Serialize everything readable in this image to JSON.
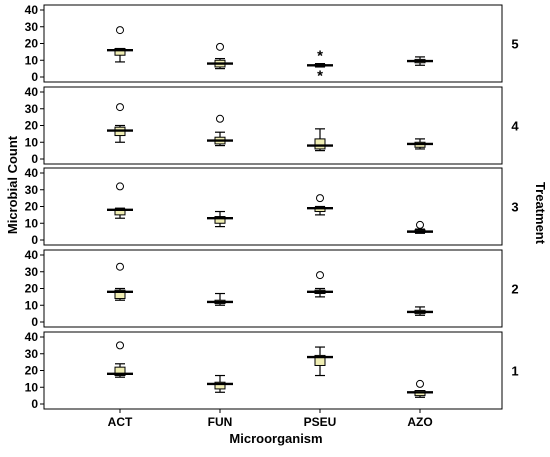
{
  "chart_data": {
    "type": "boxplot",
    "xlabel": "Microorganism",
    "ylabel": "Microbial Count",
    "facet_label": "Treatment",
    "categories": [
      "ACT",
      "FUN",
      "PSEU",
      "AZO"
    ],
    "ylim": [
      0,
      40
    ],
    "yticks": [
      0,
      10,
      20,
      30,
      40
    ],
    "grid": false,
    "box_fill": "#f0eeb4",
    "panels": [
      {
        "treatment": "5",
        "boxes": [
          {
            "category": "ACT",
            "min": 9,
            "q1": 13,
            "median": 16,
            "q3": 17,
            "max": 17,
            "outliers": [
              {
                "value": 28,
                "marker": "circle"
              }
            ]
          },
          {
            "category": "FUN",
            "min": 5,
            "q1": 6,
            "median": 8,
            "q3": 10,
            "max": 11,
            "outliers": [
              {
                "value": 18,
                "marker": "circle"
              }
            ]
          },
          {
            "category": "PSEU",
            "min": 6,
            "q1": 6.5,
            "median": 7,
            "q3": 7.5,
            "max": 8,
            "outliers": [
              {
                "value": 14,
                "marker": "star"
              },
              {
                "value": 2,
                "marker": "star"
              }
            ]
          },
          {
            "category": "AZO",
            "min": 7,
            "q1": 8.5,
            "median": 9.5,
            "q3": 10.5,
            "max": 12,
            "outliers": []
          }
        ]
      },
      {
        "treatment": "4",
        "boxes": [
          {
            "category": "ACT",
            "min": 10,
            "q1": 14,
            "median": 17,
            "q3": 19,
            "max": 20,
            "outliers": [
              {
                "value": 31,
                "marker": "circle"
              }
            ]
          },
          {
            "category": "FUN",
            "min": 8,
            "q1": 9,
            "median": 11,
            "q3": 13,
            "max": 16,
            "outliers": [
              {
                "value": 24,
                "marker": "circle"
              }
            ]
          },
          {
            "category": "PSEU",
            "min": 5,
            "q1": 6,
            "median": 8,
            "q3": 12,
            "max": 18,
            "outliers": []
          },
          {
            "category": "AZO",
            "min": 6,
            "q1": 7,
            "median": 9,
            "q3": 10,
            "max": 12,
            "outliers": []
          }
        ]
      },
      {
        "treatment": "3",
        "boxes": [
          {
            "category": "ACT",
            "min": 13,
            "q1": 15,
            "median": 18,
            "q3": 18.5,
            "max": 19,
            "outliers": [
              {
                "value": 32,
                "marker": "circle"
              }
            ]
          },
          {
            "category": "FUN",
            "min": 8,
            "q1": 10,
            "median": 13,
            "q3": 14,
            "max": 17,
            "outliers": []
          },
          {
            "category": "PSEU",
            "min": 15,
            "q1": 17,
            "median": 19,
            "q3": 19.5,
            "max": 20,
            "outliers": [
              {
                "value": 25,
                "marker": "circle"
              }
            ]
          },
          {
            "category": "AZO",
            "min": 4,
            "q1": 4.5,
            "median": 5,
            "q3": 6,
            "max": 6.5,
            "outliers": [
              {
                "value": 9,
                "marker": "circle"
              }
            ]
          }
        ]
      },
      {
        "treatment": "2",
        "boxes": [
          {
            "category": "ACT",
            "min": 13,
            "q1": 14,
            "median": 18,
            "q3": 19,
            "max": 20,
            "outliers": [
              {
                "value": 33,
                "marker": "circle"
              }
            ]
          },
          {
            "category": "FUN",
            "min": 10,
            "q1": 11,
            "median": 12,
            "q3": 13,
            "max": 17,
            "outliers": []
          },
          {
            "category": "PSEU",
            "min": 15,
            "q1": 17,
            "median": 18,
            "q3": 19,
            "max": 20,
            "outliers": [
              {
                "value": 28,
                "marker": "circle"
              }
            ]
          },
          {
            "category": "AZO",
            "min": 4,
            "q1": 5,
            "median": 6,
            "q3": 7,
            "max": 9,
            "outliers": []
          }
        ]
      },
      {
        "treatment": "1",
        "boxes": [
          {
            "category": "ACT",
            "min": 16,
            "q1": 17,
            "median": 18,
            "q3": 22,
            "max": 24,
            "outliers": [
              {
                "value": 35,
                "marker": "circle"
              }
            ]
          },
          {
            "category": "FUN",
            "min": 7,
            "q1": 9,
            "median": 12,
            "q3": 13,
            "max": 17,
            "outliers": []
          },
          {
            "category": "PSEU",
            "min": 17,
            "q1": 23,
            "median": 28,
            "q3": 29,
            "max": 34,
            "outliers": []
          },
          {
            "category": "AZO",
            "min": 4,
            "q1": 5,
            "median": 7,
            "q3": 8,
            "max": 8,
            "outliers": [
              {
                "value": 12,
                "marker": "circle"
              }
            ]
          }
        ]
      }
    ]
  }
}
